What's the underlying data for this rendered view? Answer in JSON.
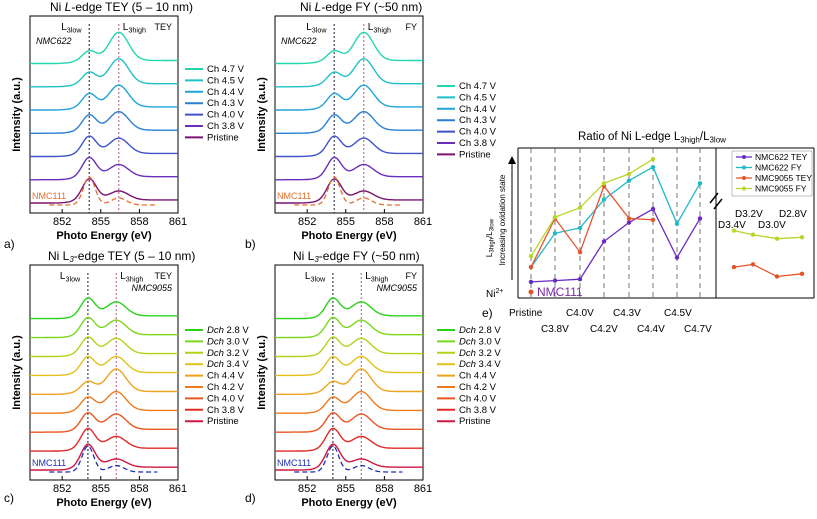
{
  "colors": {
    "teal": [
      "#22d6b0",
      "#1fc0c6",
      "#20a4d8",
      "#2a7fd3",
      "#3f53c8",
      "#6a2fb8",
      "#7a1470"
    ],
    "ramp": [
      "#2ad31a",
      "#78d81a",
      "#b2d21a",
      "#e2c11a",
      "#efa21c",
      "#ef7a1e",
      "#e9561f",
      "#e02b26",
      "#cf1640"
    ],
    "ref_orange": "#e46f2e",
    "ref_blue": "#1d2fb4",
    "ratio": {
      "NMC622 TEY": "#6a2bc2",
      "NMC622 FY": "#21b8c8",
      "NMC9055 TEY": "#e4542a",
      "NMC9055 FY": "#b8d62a"
    }
  },
  "panels": {
    "a": {
      "title": "Ni L-edge TEY (5 – 10 nm)",
      "mode": "TEY",
      "sample": "NMC622",
      "ref": "NMC111",
      "panel_label": "a)",
      "l3low": "L3low",
      "l3high": "L3high",
      "xlabel": "Photo Energy (eV)",
      "ylabel": "Intensity (a.u.)",
      "xticks": [
        "852",
        "855",
        "858",
        "861"
      ],
      "legend": [
        "Ch 4.7 V",
        "Ch 4.5 V",
        "Ch 4.4 V",
        "Ch 4.3 V",
        "Ch 4.0 V",
        "Ch 3.8 V",
        "Pristine"
      ]
    },
    "b": {
      "title": "Ni L-edge FY (~50 nm)",
      "mode": "FY",
      "sample": "NMC622",
      "ref": "NMC111",
      "panel_label": "b)",
      "l3low": "L3low",
      "l3high": "L3high",
      "xlabel": "Photo Energy (eV)",
      "ylabel": "Intensity (a.u.)",
      "xticks": [
        "852",
        "855",
        "858",
        "861"
      ],
      "legend": [
        "Ch 4.7 V",
        "Ch 4.5 V",
        "Ch 4.4 V",
        "Ch 4.3 V",
        "Ch 4.0 V",
        "Ch 3.8 V",
        "Pristine"
      ]
    },
    "c": {
      "title": "Ni L3-edge TEY (5 – 10 nm)",
      "mode": "TEY",
      "sample": "NMC9055",
      "ref": "NMC111",
      "panel_label": "c)",
      "l3low": "L3low",
      "l3high": "L3high",
      "xlabel": "Photo Energy (eV)",
      "ylabel": "Intensity (a.u.)",
      "xticks": [
        "852",
        "855",
        "858",
        "861"
      ],
      "legend": [
        "Dch 2.8 V",
        "Dch 3.0 V",
        "Dch 3.2 V",
        "Dch 3.4 V",
        "Ch 4.4 V",
        "Ch 4.2 V",
        "Ch 4.0 V",
        "Ch 3.8 V",
        "Pristine"
      ]
    },
    "d": {
      "title": "Ni L3-edge FY (~50 nm)",
      "mode": "FY",
      "sample": "NMC9055",
      "ref": "NMC111",
      "panel_label": "d)",
      "l3low": "L3low",
      "l3high": "L3high",
      "xlabel": "Photo Energy (eV)",
      "ylabel": "Intensity (a.u.)",
      "xticks": [
        "852",
        "855",
        "858",
        "861"
      ],
      "legend": [
        "Dch 2.8 V",
        "Dch 3.0 V",
        "Dch 3.2 V",
        "Dch 3.4 V",
        "Ch 4.4 V",
        "Ch 4.2 V",
        "Ch 4.0 V",
        "Ch 3.8 V",
        "Pristine"
      ]
    },
    "e": {
      "title": "Ratio of Ni L-edge L3high/L3low",
      "panel_label": "e)",
      "ylabel_1": "L3high/L3low",
      "ylabel_2": "Increasing oxidation state",
      "ni2": "Ni2+",
      "ref": "NMC111",
      "x_upper": [
        "Pristine",
        "C4.0V",
        "C4.3V",
        "C4.5V"
      ],
      "x_lower": [
        "C3.8V",
        "C4.2V",
        "C4.4V",
        "C4.7V"
      ],
      "x_right_upper": [
        "D3.2V",
        "D2.8V"
      ],
      "x_right_lower": [
        "D3.4V",
        "D3.0V"
      ],
      "legend": [
        "NMC622 TEY",
        "NMC622 FY",
        "NMC9055 TEY",
        "NMC9055 FY"
      ]
    }
  },
  "chart_data": {
    "type": "line",
    "title": "Ratio of Ni L-edge L3high/L3low",
    "xlabel": "",
    "ylabel": "L3high/L3low (increasing oxidation state)",
    "categories": [
      "Pristine",
      "C3.8V",
      "C4.0V",
      "C4.2V",
      "C4.3V",
      "C4.4V",
      "C4.5V",
      "C4.7V"
    ],
    "categories_discharge": [
      "D3.4V",
      "D3.2V",
      "D3.0V",
      "D2.8V"
    ],
    "reference_NMC111": 0.0,
    "ylim": [
      0,
      1
    ],
    "series": [
      {
        "name": "NMC622 TEY",
        "values": [
          0.06,
          0.07,
          0.08,
          0.36,
          0.5,
          0.6,
          0.24,
          0.53
        ]
      },
      {
        "name": "NMC622 FY",
        "values": [
          0.17,
          0.42,
          0.46,
          0.67,
          0.81,
          0.91,
          0.49,
          0.79
        ]
      },
      {
        "name": "NMC9055 TEY",
        "values": [
          0.17,
          0.53,
          0.28,
          0.77,
          0.53,
          0.52
        ],
        "x": [
          "Pristine",
          "C3.8V",
          "C4.0V",
          "C4.2V",
          "C4.3V",
          "C4.4V"
        ],
        "discharge": [
          0.17,
          0.19,
          0.1,
          0.12
        ]
      },
      {
        "name": "NMC9055 FY",
        "values": [
          0.25,
          0.54,
          0.61,
          0.79,
          0.86,
          0.97
        ],
        "x": [
          "Pristine",
          "C3.8V",
          "C4.0V",
          "C4.2V",
          "C4.3V",
          "C4.4V"
        ],
        "discharge": [
          0.44,
          0.41,
          0.38,
          0.39
        ]
      }
    ]
  }
}
